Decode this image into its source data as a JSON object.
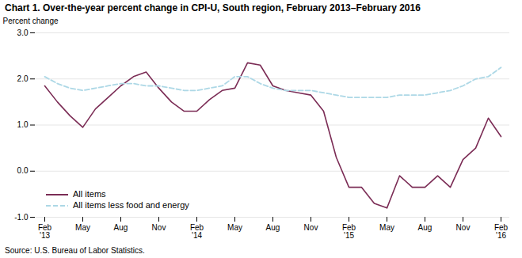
{
  "chart_data": {
    "type": "line",
    "title": "Chart 1. Over-the-year percent change in CPI-U, South region, February 2013–February 2016",
    "ylabel": "Percent change",
    "source": "Source: U.S. Bureau of Labor Statistics.",
    "categories": [
      "Feb\n'13",
      null,
      null,
      "May",
      null,
      null,
      "Aug",
      null,
      null,
      "Nov",
      null,
      null,
      "Feb\n'14",
      null,
      null,
      "May",
      null,
      null,
      "Aug",
      null,
      null,
      "Nov",
      null,
      null,
      "Feb\n'15",
      null,
      null,
      "May",
      null,
      null,
      "Aug",
      null,
      null,
      "Nov",
      null,
      null,
      "Feb\n'16"
    ],
    "series": [
      {
        "name": "All items",
        "color": "#7B2C55",
        "line_style": "solid",
        "values": [
          1.85,
          1.5,
          1.2,
          0.95,
          1.35,
          1.6,
          1.85,
          2.05,
          2.15,
          1.8,
          1.5,
          1.3,
          1.3,
          1.55,
          1.75,
          1.8,
          2.35,
          2.3,
          1.85,
          1.75,
          1.7,
          1.65,
          1.3,
          0.3,
          -0.35,
          -0.35,
          -0.7,
          -0.8,
          -0.1,
          -0.35,
          -0.35,
          -0.1,
          -0.35,
          0.25,
          0.5,
          1.15,
          0.75
        ]
      },
      {
        "name": "All items less food and energy",
        "color": "#ADD8E6",
        "line_style": "dashed",
        "values": [
          2.05,
          1.9,
          1.8,
          1.75,
          1.8,
          1.85,
          1.9,
          1.9,
          1.85,
          1.85,
          1.8,
          1.75,
          1.75,
          1.8,
          1.85,
          2.05,
          2.05,
          1.9,
          1.8,
          1.75,
          1.75,
          1.75,
          1.7,
          1.65,
          1.6,
          1.6,
          1.6,
          1.6,
          1.65,
          1.65,
          1.65,
          1.7,
          1.75,
          1.85,
          2.0,
          2.05,
          2.25
        ]
      }
    ],
    "ylim": [
      -1.0,
      3.0
    ],
    "yticks": [
      {
        "value": -1.0,
        "label": "-1.0"
      },
      {
        "value": 0.0,
        "label": "0.0"
      },
      {
        "value": 1.0,
        "label": "1.0"
      },
      {
        "value": 2.0,
        "label": "2.0"
      },
      {
        "value": 3.0,
        "label": "3.0"
      }
    ],
    "grid": "y",
    "legend": "lower left"
  }
}
